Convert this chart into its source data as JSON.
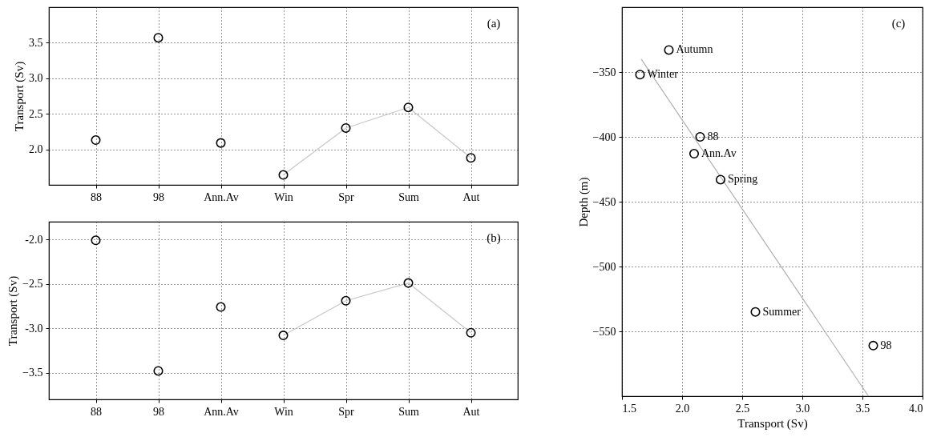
{
  "chart_data": [
    {
      "type": "scatter",
      "ylabel": "Transport (Sv)",
      "annotations": [
        "(a)"
      ],
      "categories": [
        "88",
        "98",
        "Ann.Av",
        "Win",
        "Spr",
        "Sum",
        "Aut"
      ],
      "ylim": [
        1.5,
        4.0
      ],
      "yticks": [
        {
          "value": 2,
          "label": "2.0"
        },
        2.5,
        {
          "value": 3,
          "label": "3.0"
        },
        3.5
      ],
      "grid": true,
      "series": [
        {
          "color": "#000000",
          "marker": "circle",
          "values": [
            2.13,
            3.57,
            2.09,
            1.64,
            2.3,
            2.59,
            1.88
          ]
        },
        {
          "type": "line",
          "color": "#c8c8c8",
          "marker": "none",
          "values": [
            null,
            null,
            null,
            1.64,
            2.3,
            2.59,
            1.88
          ]
        }
      ]
    },
    {
      "type": "scatter",
      "ylabel": "Transport (Sv)",
      "annotations": [
        "(b)"
      ],
      "categories": [
        "88",
        "98",
        "Ann.Av",
        "Win",
        "Spr",
        "Sum",
        "Aut"
      ],
      "ylim": [
        -3.8,
        -1.8
      ],
      "yticks": [
        -3.5,
        {
          "value": -3,
          "label": "-3.0"
        },
        -2.5,
        {
          "value": -2,
          "label": "-2.0"
        }
      ],
      "grid": true,
      "series": [
        {
          "color": "#000000",
          "marker": "circle",
          "values": [
            -2.01,
            -3.48,
            -2.76,
            -3.08,
            -2.69,
            -2.49,
            -3.05
          ]
        },
        {
          "type": "line",
          "color": "#c8c8c8",
          "marker": "none",
          "values": [
            null,
            null,
            null,
            -3.08,
            -2.69,
            -2.49,
            -3.05
          ]
        }
      ]
    },
    {
      "type": "scatter",
      "xlabel": "Transport (Sv)",
      "ylabel": "Depth (m)",
      "xlim": [
        1.5,
        4.0
      ],
      "xticks": [
        1.5,
        {
          "value": 2,
          "label": "2.0"
        },
        2.5,
        {
          "value": 3,
          "label": "3.0"
        },
        3.5,
        {
          "value": 4,
          "label": "4.0"
        }
      ],
      "ylim": [
        -600,
        -300
      ],
      "yticks": [
        -550,
        -500,
        -450,
        -400,
        -350
      ],
      "grid": true,
      "annotations": [
        "(c)",
        {
          "text": "Autumn",
          "x": 1.89,
          "y": -333
        },
        {
          "text": "Winter",
          "x": 1.65,
          "y": -352
        },
        {
          "text": "88",
          "x": 2.15,
          "y": -400
        },
        {
          "text": "Ann.Av",
          "x": 2.1,
          "y": -413
        },
        {
          "text": "Spring",
          "x": 2.32,
          "y": -433
        },
        {
          "text": "Summer",
          "x": 2.61,
          "y": -535
        },
        {
          "text": "98",
          "x": 3.59,
          "y": -561
        }
      ],
      "series": [
        {
          "color": "#000000",
          "marker": "circle",
          "x": [
            1.89,
            1.65,
            2.15,
            2.1,
            2.32,
            2.61,
            3.59
          ],
          "values": [
            -333,
            -352,
            -400,
            -413,
            -433,
            -535,
            -561
          ]
        },
        {
          "type": "line",
          "color": "#b0b0b0",
          "marker": "none",
          "x": [
            1.66,
            3.55
          ],
          "values": [
            -340,
            -600
          ]
        }
      ]
    }
  ]
}
